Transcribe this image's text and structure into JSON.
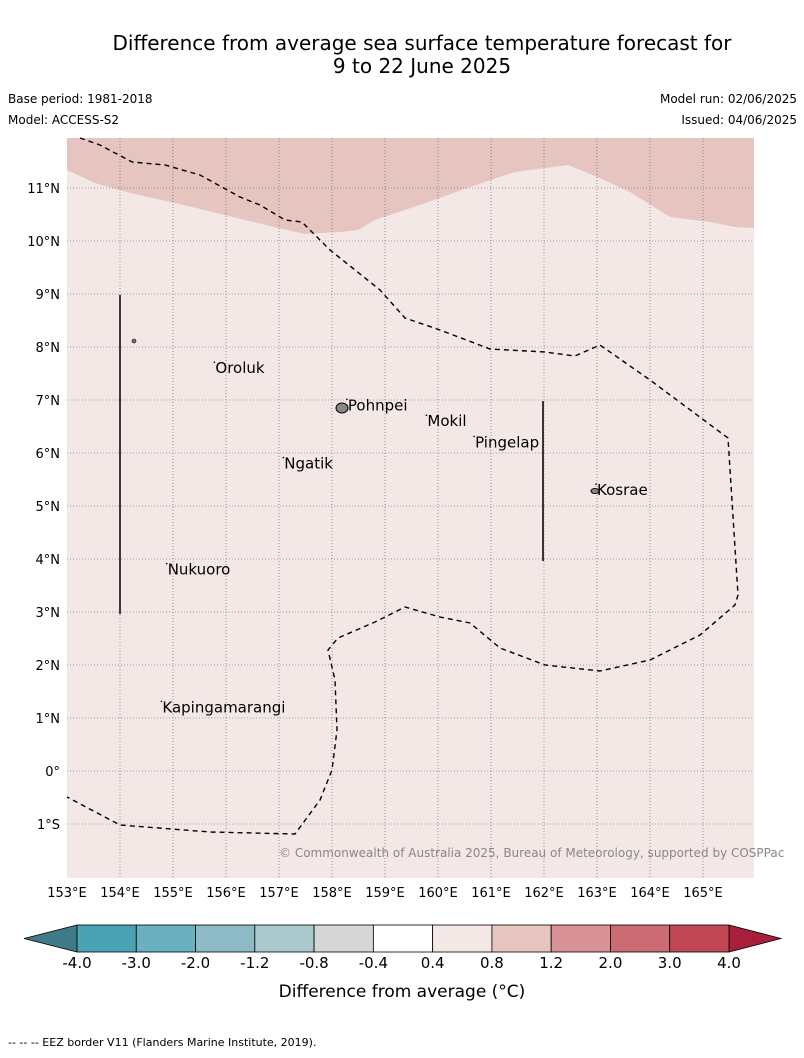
{
  "title": {
    "line1": "Difference from average sea surface temperature forecast for",
    "line2": "9 to 22 June 2025"
  },
  "meta": {
    "base_period": "Base period: 1981-2018",
    "model": "Model: ACCESS-S2",
    "model_run": "Model run: 02/06/2025",
    "issued": "Issued: 04/06/2025"
  },
  "map": {
    "lon_range": [
      153,
      166
    ],
    "lat_range": [
      -2,
      12
    ],
    "background_color": "#f4e8e6",
    "warm_region_color": "#e6c5c0",
    "copyright": "© Commonwealth of Australia 2025, Bureau of Meteorology, supported by COSPPac",
    "lon_ticks": [
      "153°E",
      "154°E",
      "155°E",
      "156°E",
      "157°E",
      "158°E",
      "159°E",
      "160°E",
      "161°E",
      "162°E",
      "163°E",
      "164°E",
      "165°E"
    ],
    "lat_ticks": [
      "1°S",
      "0°",
      "1°N",
      "2°N",
      "3°N",
      "4°N",
      "5°N",
      "6°N",
      "7°N",
      "8°N",
      "9°N",
      "10°N",
      "11°N"
    ],
    "places": [
      {
        "name": "Oroluk",
        "lon": 155.8,
        "lat": 7.6
      },
      {
        "name": "Pohnpei",
        "lon": 158.3,
        "lat": 6.9
      },
      {
        "name": "Mokil",
        "lon": 159.8,
        "lat": 6.6
      },
      {
        "name": "Pingelap",
        "lon": 160.7,
        "lat": 6.2
      },
      {
        "name": "Ngatik",
        "lon": 157.1,
        "lat": 5.8
      },
      {
        "name": "Kosrae",
        "lon": 163.0,
        "lat": 5.3
      },
      {
        "name": "Nukuoro",
        "lon": 154.9,
        "lat": 3.8
      },
      {
        "name": "Kapingamarangi",
        "lon": 154.8,
        "lat": 1.2
      }
    ]
  },
  "colorbar": {
    "title": "Difference from average (°C)",
    "labels": [
      "-4.0",
      "-3.0",
      "-2.0",
      "-1.2",
      "-0.8",
      "-0.4",
      "0.4",
      "0.8",
      "1.2",
      "2.0",
      "3.0",
      "4.0"
    ],
    "colors": [
      "#4aa3b5",
      "#6ab0c1",
      "#8dbac5",
      "#aac8cb",
      "#d6d6d6",
      "#ffffff",
      "#f4e8e6",
      "#e6c5c0",
      "#d99297",
      "#cc6b74",
      "#c24856"
    ],
    "under_color": "#3d7b86",
    "over_color": "#a81f3c"
  },
  "footer": "-- -- -- EEZ border V11 (Flanders Marine Institute, 2019)."
}
